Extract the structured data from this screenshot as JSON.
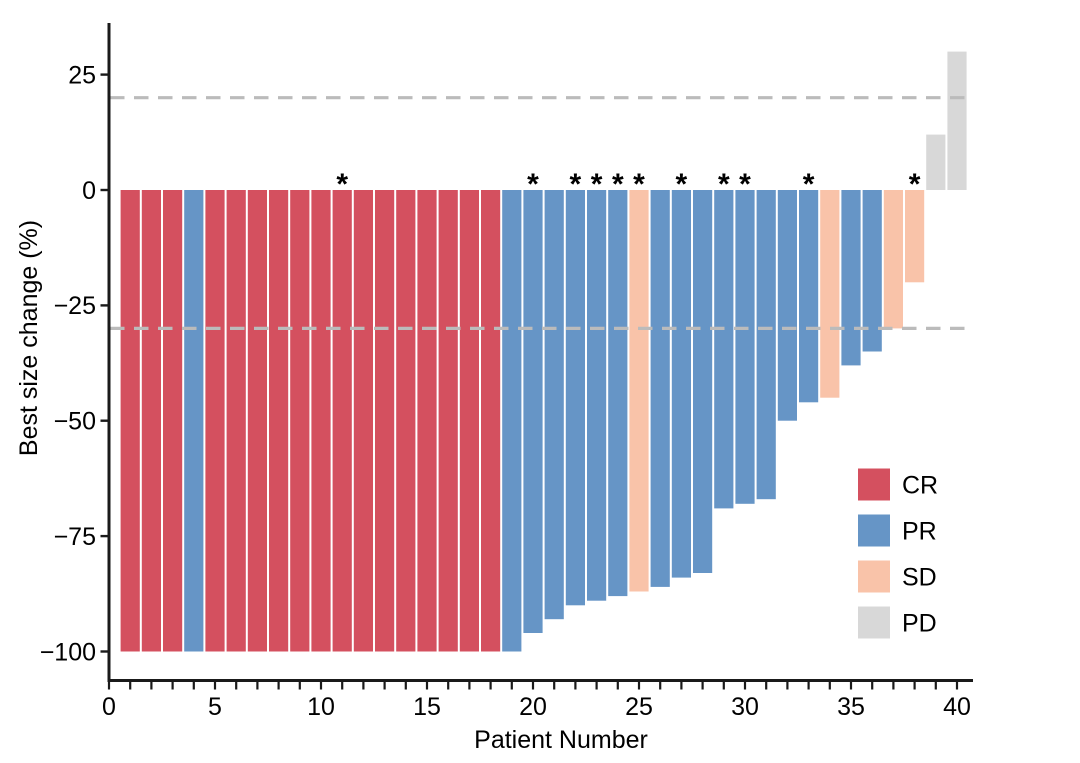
{
  "figure": {
    "background": "#FFFFFF"
  },
  "chart_data": {
    "type": "bar",
    "subtype": "waterfall",
    "title": "",
    "xlabel": "Patient Number",
    "ylabel": "Best size change (%)",
    "x_tick_values": [
      0,
      5,
      10,
      15,
      20,
      25,
      30,
      35,
      40
    ],
    "x_tick_labels": [
      "0",
      "5",
      "10",
      "15",
      "20",
      "25",
      "30",
      "35",
      "40"
    ],
    "x_minor_ticks_every": 1,
    "x_minor_tick_range": [
      0,
      40
    ],
    "y_tick_values": [
      25,
      0,
      -25,
      -50,
      -75,
      -100
    ],
    "y_tick_labels": [
      "25",
      "0",
      "−25",
      "−50",
      "−75",
      "−100"
    ],
    "xlim": [
      0,
      41
    ],
    "ylim": [
      -106,
      36
    ],
    "grid": false,
    "axis_color": "#1A1A1A",
    "reference_lines": {
      "values": [
        20,
        -30
      ],
      "style": "dashed",
      "color": "#BBBBBB"
    },
    "marker_symbol": "*",
    "asterisk_patients": [
      11,
      20,
      22,
      23,
      24,
      25,
      27,
      29,
      30,
      33,
      38
    ],
    "colors": {
      "CR": "#D4505F",
      "PR": "#6695C6",
      "SD": "#F9C3A9",
      "PD": "#D8D8D8"
    },
    "legend": {
      "position": "inside-right",
      "entries": [
        {
          "label": "CR"
        },
        {
          "label": "PR"
        },
        {
          "label": "SD"
        },
        {
          "label": "PD"
        }
      ]
    },
    "patients": [
      {
        "patient": 1,
        "value": -100,
        "response": "CR",
        "asterisk": false
      },
      {
        "patient": 2,
        "value": -100,
        "response": "CR",
        "asterisk": false
      },
      {
        "patient": 3,
        "value": -100,
        "response": "CR",
        "asterisk": false
      },
      {
        "patient": 4,
        "value": -100,
        "response": "PR",
        "asterisk": false
      },
      {
        "patient": 5,
        "value": -100,
        "response": "CR",
        "asterisk": false
      },
      {
        "patient": 6,
        "value": -100,
        "response": "CR",
        "asterisk": false
      },
      {
        "patient": 7,
        "value": -100,
        "response": "CR",
        "asterisk": false
      },
      {
        "patient": 8,
        "value": -100,
        "response": "CR",
        "asterisk": false
      },
      {
        "patient": 9,
        "value": -100,
        "response": "CR",
        "asterisk": false
      },
      {
        "patient": 10,
        "value": -100,
        "response": "CR",
        "asterisk": false
      },
      {
        "patient": 11,
        "value": -100,
        "response": "CR",
        "asterisk": true
      },
      {
        "patient": 12,
        "value": -100,
        "response": "CR",
        "asterisk": false
      },
      {
        "patient": 13,
        "value": -100,
        "response": "CR",
        "asterisk": false
      },
      {
        "patient": 14,
        "value": -100,
        "response": "CR",
        "asterisk": false
      },
      {
        "patient": 15,
        "value": -100,
        "response": "CR",
        "asterisk": false
      },
      {
        "patient": 16,
        "value": -100,
        "response": "CR",
        "asterisk": false
      },
      {
        "patient": 17,
        "value": -100,
        "response": "CR",
        "asterisk": false
      },
      {
        "patient": 18,
        "value": -100,
        "response": "CR",
        "asterisk": false
      },
      {
        "patient": 19,
        "value": -100,
        "response": "PR",
        "asterisk": false
      },
      {
        "patient": 20,
        "value": -96,
        "response": "PR",
        "asterisk": true
      },
      {
        "patient": 21,
        "value": -93,
        "response": "PR",
        "asterisk": false
      },
      {
        "patient": 22,
        "value": -90,
        "response": "PR",
        "asterisk": true
      },
      {
        "patient": 23,
        "value": -89,
        "response": "PR",
        "asterisk": true
      },
      {
        "patient": 24,
        "value": -88,
        "response": "PR",
        "asterisk": true
      },
      {
        "patient": 25,
        "value": -87,
        "response": "SD",
        "asterisk": true
      },
      {
        "patient": 26,
        "value": -86,
        "response": "PR",
        "asterisk": false
      },
      {
        "patient": 27,
        "value": -84,
        "response": "PR",
        "asterisk": true
      },
      {
        "patient": 28,
        "value": -83,
        "response": "PR",
        "asterisk": false
      },
      {
        "patient": 29,
        "value": -69,
        "response": "PR",
        "asterisk": true
      },
      {
        "patient": 30,
        "value": -68,
        "response": "PR",
        "asterisk": true
      },
      {
        "patient": 31,
        "value": -67,
        "response": "PR",
        "asterisk": false
      },
      {
        "patient": 32,
        "value": -50,
        "response": "PR",
        "asterisk": false
      },
      {
        "patient": 33,
        "value": -46,
        "response": "PR",
        "asterisk": true
      },
      {
        "patient": 34,
        "value": -45,
        "response": "SD",
        "asterisk": false
      },
      {
        "patient": 35,
        "value": -38,
        "response": "PR",
        "asterisk": false
      },
      {
        "patient": 36,
        "value": -35,
        "response": "PR",
        "asterisk": false
      },
      {
        "patient": 37,
        "value": -30,
        "response": "SD",
        "asterisk": false
      },
      {
        "patient": 38,
        "value": -20,
        "response": "SD",
        "asterisk": true
      },
      {
        "patient": 39,
        "value": 12,
        "response": "PD",
        "asterisk": false
      },
      {
        "patient": 40,
        "value": 30,
        "response": "PD",
        "asterisk": false
      }
    ]
  }
}
